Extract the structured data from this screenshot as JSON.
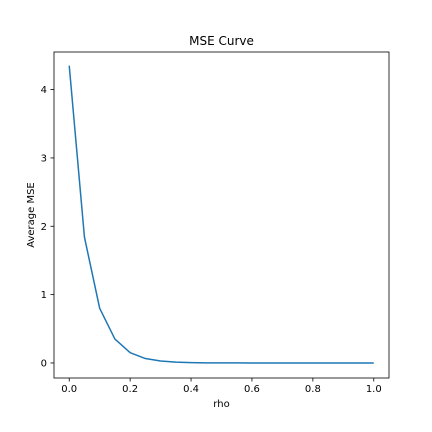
{
  "chart_data": {
    "type": "line",
    "title": "MSE Curve",
    "xlabel": "rho",
    "ylabel": "Average MSE",
    "xlim": [
      -0.05,
      1.05
    ],
    "ylim": [
      -0.22,
      4.55
    ],
    "xticks": [
      0.0,
      0.2,
      0.4,
      0.6,
      0.8,
      1.0
    ],
    "xtick_labels": [
      "0.0",
      "0.2",
      "0.4",
      "0.6",
      "0.8",
      "1.0"
    ],
    "yticks": [
      0,
      1,
      2,
      3,
      4
    ],
    "ytick_labels": [
      "0",
      "1",
      "2",
      "3",
      "4"
    ],
    "grid": false,
    "series": [
      {
        "color": "#1f77b4",
        "x": [
          0.0,
          0.05,
          0.1,
          0.15,
          0.2,
          0.25,
          0.3,
          0.35,
          0.4,
          0.45,
          0.5,
          0.55,
          0.6,
          0.65,
          0.7,
          0.75,
          0.8,
          0.85,
          0.9,
          0.95,
          1.0
        ],
        "y": [
          4.35,
          1.84,
          0.8,
          0.35,
          0.15,
          0.065,
          0.028,
          0.012,
          0.005,
          0.002,
          0.001,
          0.0005,
          0.0002,
          0.0001,
          0.0,
          0.0,
          0.0,
          0.0,
          0.0,
          0.0,
          0.0
        ]
      }
    ]
  }
}
